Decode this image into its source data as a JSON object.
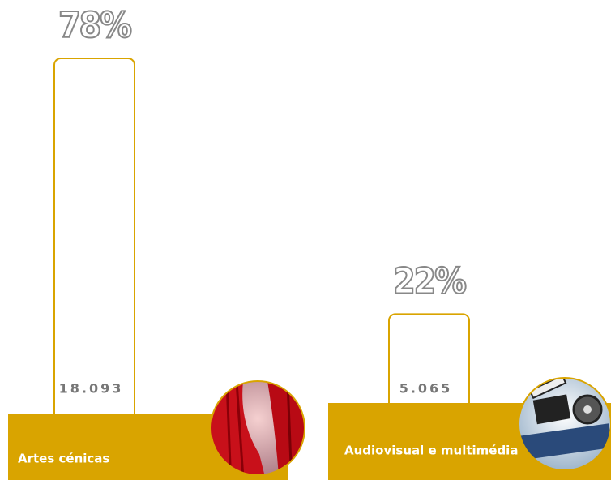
{
  "chart_data": {
    "type": "bar",
    "categories": [
      "Artes cénicas",
      "Audiovisual e multimédia"
    ],
    "values": [
      18093,
      5065
    ],
    "value_labels": [
      "18.093",
      "5.065"
    ],
    "shares": [
      78,
      22
    ],
    "share_labels": [
      "78%",
      "22%"
    ],
    "color": "#d9a400"
  }
}
